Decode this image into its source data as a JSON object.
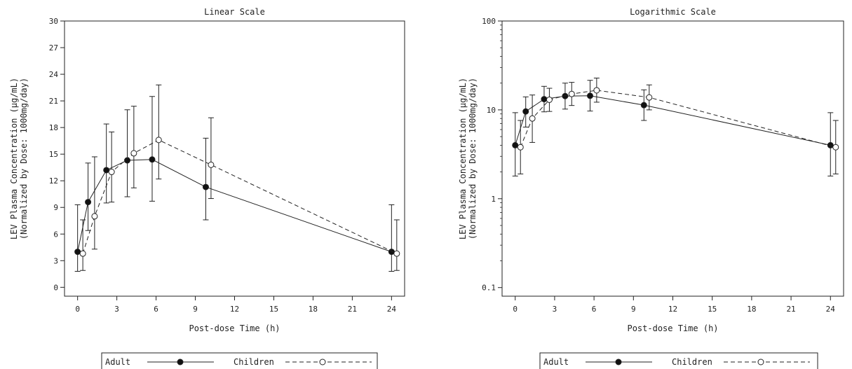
{
  "chart_data": [
    {
      "type": "line",
      "title": "Linear Scale",
      "xlabel": "Post-dose Time (h)",
      "ylabel": "LEV Plasma Concentration (µg/mL)",
      "ylabel2": "(Normalized by Dose: 1000mg/day)",
      "scale": "linear",
      "xlim": [
        -1,
        25
      ],
      "ylim": [
        -1,
        30
      ],
      "xticks": [
        0,
        3,
        6,
        9,
        12,
        15,
        18,
        21,
        24
      ],
      "yticks": [
        0,
        3,
        6,
        9,
        12,
        15,
        18,
        21,
        24,
        27,
        30
      ],
      "xtick_labels": [
        "0",
        "3",
        "6",
        "9",
        "12",
        "15",
        "18",
        "21",
        "24"
      ],
      "ytick_labels": [
        "0",
        "3",
        "6",
        "9",
        "12",
        "15",
        "18",
        "21",
        "24",
        "27",
        "30"
      ],
      "grid": false,
      "legend_position": "bottom",
      "series": [
        {
          "name": "Adult",
          "style": "solid",
          "marker": "filled-circle",
          "color": "#222222",
          "x": [
            0,
            0.8,
            2.2,
            3.8,
            5.7,
            9.8,
            24
          ],
          "y": [
            4.0,
            9.6,
            13.2,
            14.3,
            14.4,
            11.3,
            4.0
          ],
          "err_low": [
            1.8,
            6.4,
            9.5,
            10.2,
            9.7,
            7.6,
            1.8
          ],
          "err_high": [
            9.3,
            14.0,
            18.4,
            20.0,
            21.5,
            16.8,
            9.3
          ]
        },
        {
          "name": "Children",
          "style": "dashed",
          "marker": "open-circle",
          "color": "#222222",
          "x": [
            0.4,
            1.3,
            2.6,
            4.3,
            6.2,
            10.2,
            24.4
          ],
          "y": [
            3.8,
            8.0,
            13.0,
            15.1,
            16.6,
            13.8,
            3.8
          ],
          "err_low": [
            1.9,
            4.3,
            9.6,
            11.2,
            12.2,
            10.0,
            1.9
          ],
          "err_high": [
            7.6,
            14.7,
            17.5,
            20.4,
            22.8,
            19.1,
            7.6
          ]
        }
      ]
    },
    {
      "type": "line",
      "title": "Logarithmic Scale",
      "xlabel": "Post-dose Time (h)",
      "ylabel": "LEV Plasma Concentration (µg/mL)",
      "ylabel2": "(Normalized by Dose: 1000mg/day)",
      "scale": "log",
      "xlim": [
        -1,
        25
      ],
      "ylim": [
        0.08,
        100
      ],
      "xticks": [
        0,
        3,
        6,
        9,
        12,
        15,
        18,
        21,
        24
      ],
      "yticks": [
        0.1,
        1,
        10,
        100
      ],
      "xtick_labels": [
        "0",
        "3",
        "6",
        "9",
        "12",
        "15",
        "18",
        "21",
        "24"
      ],
      "ytick_labels": [
        "0.1",
        "1",
        "10",
        "100"
      ],
      "grid": false,
      "legend_position": "bottom",
      "series": [
        {
          "name": "Adult",
          "style": "solid",
          "marker": "filled-circle",
          "color": "#222222",
          "x": [
            0,
            0.8,
            2.2,
            3.8,
            5.7,
            9.8,
            24
          ],
          "y": [
            4.0,
            9.6,
            13.2,
            14.3,
            14.4,
            11.3,
            4.0
          ],
          "err_low": [
            1.8,
            6.4,
            9.5,
            10.2,
            9.7,
            7.6,
            1.8
          ],
          "err_high": [
            9.3,
            14.0,
            18.4,
            20.0,
            21.5,
            16.8,
            9.3
          ]
        },
        {
          "name": "Children",
          "style": "dashed",
          "marker": "open-circle",
          "color": "#222222",
          "x": [
            0.4,
            1.3,
            2.6,
            4.3,
            6.2,
            10.2,
            24.4
          ],
          "y": [
            3.8,
            8.0,
            13.0,
            15.1,
            16.6,
            13.8,
            3.8
          ],
          "err_low": [
            1.9,
            4.3,
            9.6,
            11.2,
            12.2,
            10.0,
            1.9
          ],
          "err_high": [
            7.6,
            14.7,
            17.5,
            20.4,
            22.8,
            19.1,
            7.6
          ]
        }
      ]
    }
  ]
}
